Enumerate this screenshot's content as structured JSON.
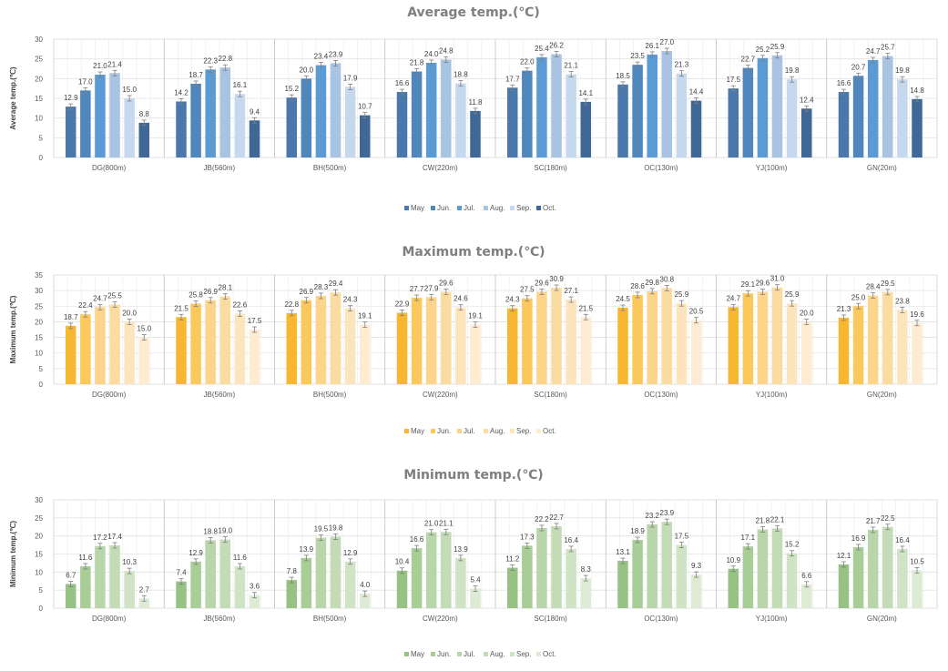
{
  "chart_data": [
    {
      "type": "bar",
      "title": "Average temp.(℃)",
      "ylabel": "Average temp.(℃)",
      "ylim": [
        0,
        30
      ],
      "yticks": [
        0,
        5,
        10,
        15,
        20,
        25,
        30
      ],
      "grid": true,
      "legend_position": "bottom",
      "categories": [
        "DG(800m)",
        "JB(560m)",
        "BH(500m)",
        "CW(220m)",
        "SC(180m)",
        "OC(130m)",
        "YJ(100m)",
        "GN(20m)"
      ],
      "series": [
        {
          "name": "May",
          "color": "#4a78aa",
          "values": [
            12.9,
            14.2,
            15.2,
            16.6,
            17.7,
            18.5,
            17.5,
            16.6
          ]
        },
        {
          "name": "Jun.",
          "color": "#4f87bd",
          "values": [
            17.0,
            18.7,
            20.0,
            21.8,
            22.0,
            23.5,
            22.7,
            20.7
          ]
        },
        {
          "name": "Jul.",
          "color": "#5b9bd5",
          "values": [
            21.0,
            22.3,
            23.4,
            24.0,
            25.4,
            26.1,
            25.2,
            24.7
          ]
        },
        {
          "name": "Aug.",
          "color": "#a9c3e3",
          "values": [
            21.4,
            22.8,
            23.9,
            24.8,
            26.2,
            27.0,
            25.9,
            25.7
          ]
        },
        {
          "name": "Sep.",
          "color": "#c6d8ee",
          "values": [
            15.0,
            16.1,
            17.9,
            18.8,
            21.1,
            21.3,
            19.8,
            19.8
          ]
        },
        {
          "name": "Oct.",
          "color": "#3f6896",
          "values": [
            8.8,
            9.4,
            10.7,
            11.8,
            14.1,
            14.4,
            12.4,
            14.8
          ]
        }
      ]
    },
    {
      "type": "bar",
      "title": "Maximum temp.(℃)",
      "ylabel": "Maximum temp.(℃)",
      "ylim": [
        0,
        35
      ],
      "yticks": [
        0,
        5,
        10,
        15,
        20,
        25,
        30,
        35
      ],
      "grid": true,
      "legend_position": "bottom",
      "categories": [
        "DG(800m)",
        "JB(560m)",
        "BH(500m)",
        "CW(220m)",
        "SC(180m)",
        "OC(130m)",
        "YJ(100m)",
        "GN(20m)"
      ],
      "series": [
        {
          "name": "May",
          "color": "#f7b731",
          "values": [
            18.7,
            21.5,
            22.8,
            22.9,
            24.3,
            24.5,
            24.7,
            21.3
          ]
        },
        {
          "name": "Jun.",
          "color": "#fbc85b",
          "values": [
            22.4,
            25.8,
            26.9,
            27.7,
            27.5,
            28.6,
            29.1,
            25.0
          ]
        },
        {
          "name": "Jul.",
          "color": "#fdd58a",
          "values": [
            24.7,
            26.9,
            28.3,
            27.9,
            29.6,
            29.8,
            29.6,
            28.4
          ]
        },
        {
          "name": "Aug.",
          "color": "#fbdca0",
          "values": [
            25.5,
            28.1,
            29.4,
            29.6,
            30.9,
            30.8,
            31.0,
            29.5
          ]
        },
        {
          "name": "Sep.",
          "color": "#fce4bd",
          "values": [
            20.0,
            22.6,
            24.3,
            24.6,
            27.1,
            25.9,
            25.9,
            23.8
          ]
        },
        {
          "name": "Oct.",
          "color": "#fdecd2",
          "values": [
            15.0,
            17.5,
            19.1,
            19.1,
            21.5,
            20.5,
            20.0,
            19.6
          ]
        }
      ]
    },
    {
      "type": "bar",
      "title": "Minimum temp.(℃)",
      "ylabel": "Minimum temp.(℃)",
      "ylim": [
        0,
        30
      ],
      "yticks": [
        0,
        5,
        10,
        15,
        20,
        25,
        30
      ],
      "grid": true,
      "legend_position": "bottom",
      "categories": [
        "DG(800m)",
        "JB(560m)",
        "BH(500m)",
        "CW(220m)",
        "SC(180m)",
        "OC(130m)",
        "YJ(100m)",
        "GN(20m)"
      ],
      "series": [
        {
          "name": "May",
          "color": "#96c283",
          "values": [
            6.7,
            7.4,
            7.8,
            10.4,
            11.2,
            13.1,
            10.9,
            12.1
          ]
        },
        {
          "name": "Jun.",
          "color": "#a9cd97",
          "values": [
            11.6,
            12.9,
            13.9,
            16.6,
            17.3,
            18.9,
            17.1,
            16.9
          ]
        },
        {
          "name": "Jul.",
          "color": "#b9d6aa",
          "values": [
            17.2,
            18.8,
            19.5,
            21.0,
            22.2,
            23.2,
            21.8,
            21.7
          ]
        },
        {
          "name": "Aug.",
          "color": "#c3dcb6",
          "values": [
            17.4,
            19.0,
            19.8,
            21.1,
            22.7,
            23.9,
            22.1,
            22.5
          ]
        },
        {
          "name": "Sep.",
          "color": "#cfe3c5",
          "values": [
            10.3,
            11.6,
            12.9,
            13.9,
            16.4,
            17.5,
            15.2,
            16.4
          ]
        },
        {
          "name": "Oct.",
          "color": "#ddebd5",
          "values": [
            2.7,
            3.6,
            4.0,
            5.4,
            8.3,
            9.3,
            6.6,
            10.5
          ]
        }
      ]
    }
  ]
}
